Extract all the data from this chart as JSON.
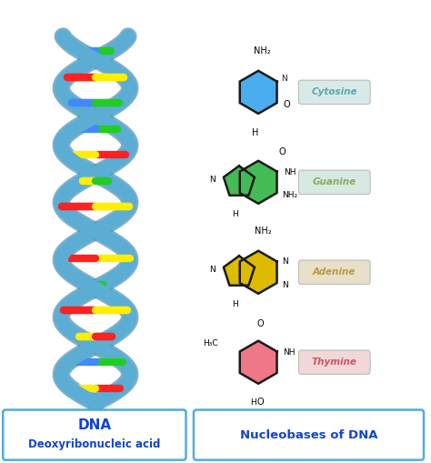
{
  "bg_color": "#ffffff",
  "dna_helix_color": "#5badd4",
  "dna_helix_shadow": "#4a8fb5",
  "strand_colors_rung": [
    [
      "#ff2020",
      "#ffee00"
    ],
    [
      "#22cc22",
      "#4488ff"
    ],
    [
      "#ffee00",
      "#ff2020"
    ],
    [
      "#ff2020",
      "#ffee00"
    ],
    [
      "#22cc22",
      "#4488ff"
    ],
    [
      "#ffee00",
      "#ff2020"
    ],
    [
      "#22cc22",
      "#4488ff"
    ],
    [
      "#ff2020",
      "#ffee00"
    ],
    [
      "#ffee00",
      "#22cc22"
    ],
    [
      "#ff2020",
      "#ffee00"
    ],
    [
      "#22cc22",
      "#4488ff"
    ],
    [
      "#4488ff",
      "#22cc22"
    ],
    [
      "#ff2020",
      "#ffee00"
    ],
    [
      "#22cc22",
      "#4488ff"
    ]
  ],
  "cytosine_color": "#4aadee",
  "guanine_color": "#44bb55",
  "adenine_color": "#ddbb00",
  "thymine_color": "#ee7788",
  "label_cytosine": "Cytosine",
  "label_guanine": "Guanine",
  "label_adenine": "Adenine",
  "label_thymine": "Thymine",
  "label_cytosine_box": "#d8eae8",
  "label_guanine_box": "#d8eae0",
  "label_adenine_box": "#e8e0c8",
  "label_thymine_box": "#f0d8d8",
  "label_cytosine_text": "#55aaaa",
  "label_guanine_text": "#88aa66",
  "label_adenine_text": "#bb9944",
  "label_thymine_text": "#cc5566",
  "box_border_color": "#55aadd",
  "box_text_color": "#1144cc",
  "fig_width": 4.74,
  "fig_height": 5.09,
  "dpi": 100
}
